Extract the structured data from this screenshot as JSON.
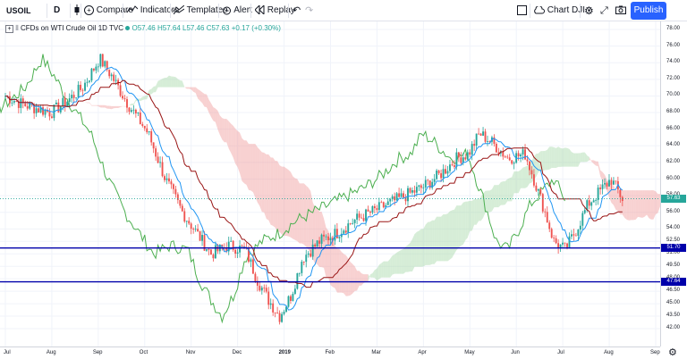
{
  "toolbar": {
    "symbol": "USOIL",
    "interval": "D",
    "compare_label": "Compare",
    "indicators_label": "Indicators",
    "templates_label": "Templates",
    "alert_label": "Alert",
    "replay_label": "Replay",
    "chart_name": "Chart DJI",
    "publish_label": "Publish"
  },
  "legend": {
    "title": "CFDs on WTI Crude Oil",
    "interval": "1D",
    "source": "TVC",
    "open": "O57.46",
    "high": "H57.64",
    "low": "L57.46",
    "close": "C57.63",
    "change": "+0.17 (+0.30%)"
  },
  "colors": {
    "up": "#26a69a",
    "down": "#ef5350",
    "conversion_line": "#2196f3",
    "base_line": "#991515",
    "lagging_span": "#4caf50",
    "cloud_bull": "#a5d6a7",
    "cloud_bear": "#ef9a9a",
    "horizontal_line": "#0000aa",
    "price_badge": "#26a69a",
    "accent": "#2962ff"
  },
  "chart_data": {
    "type": "candlestick",
    "symbol": "USOIL",
    "title": "CFDs on WTI Crude Oil",
    "interval": "1D",
    "y_ticks": [
      78.0,
      76.0,
      74.0,
      72.0,
      70.0,
      68.0,
      66.0,
      64.0,
      62.0,
      60.0,
      58.0,
      56.0,
      54.0,
      52.5,
      51.0,
      49.5,
      48.0,
      46.5,
      45.0,
      43.5,
      42.0
    ],
    "x_ticks": [
      "Jul",
      "Aug",
      "Sep",
      "Oct",
      "Nov",
      "Dec",
      "2019",
      "Feb",
      "Mar",
      "Apr",
      "May",
      "Jun",
      "Jul",
      "Aug",
      "Sep"
    ],
    "last_price": 57.63,
    "last_price_label": "57.63",
    "horizontal_lines": [
      {
        "value": 51.7,
        "label": "51.70",
        "color": "#0000aa"
      },
      {
        "value": 47.64,
        "label": "47.64",
        "color": "#0000aa"
      }
    ],
    "close_path": [
      {
        "t": 0.0,
        "v": 70.0
      },
      {
        "t": 0.06,
        "v": 69.0
      },
      {
        "t": 0.11,
        "v": 68.5
      },
      {
        "t": 0.16,
        "v": 68.0
      },
      {
        "t": 0.22,
        "v": 69.5
      },
      {
        "t": 0.27,
        "v": 71.0
      },
      {
        "t": 0.33,
        "v": 74.5
      },
      {
        "t": 0.37,
        "v": 72.5
      },
      {
        "t": 0.43,
        "v": 69.0
      },
      {
        "t": 0.5,
        "v": 65.5
      },
      {
        "t": 0.56,
        "v": 60.0
      },
      {
        "t": 0.62,
        "v": 56.0
      },
      {
        "t": 0.68,
        "v": 53.0
      },
      {
        "t": 0.72,
        "v": 51.0
      },
      {
        "t": 0.78,
        "v": 52.0
      },
      {
        "t": 0.84,
        "v": 51.5
      },
      {
        "t": 0.88,
        "v": 48.0
      },
      {
        "t": 0.92,
        "v": 45.5
      },
      {
        "t": 0.96,
        "v": 43.5
      },
      {
        "t": 1.0,
        "v": 46.0
      },
      {
        "t": 1.04,
        "v": 50.5
      },
      {
        "t": 1.1,
        "v": 52.5
      },
      {
        "t": 1.16,
        "v": 53.5
      },
      {
        "t": 1.22,
        "v": 55.0
      },
      {
        "t": 1.28,
        "v": 56.0
      },
      {
        "t": 1.34,
        "v": 57.0
      },
      {
        "t": 1.4,
        "v": 58.0
      },
      {
        "t": 1.46,
        "v": 59.0
      },
      {
        "t": 1.52,
        "v": 60.5
      },
      {
        "t": 1.58,
        "v": 62.5
      },
      {
        "t": 1.62,
        "v": 63.0
      },
      {
        "t": 1.66,
        "v": 65.5
      },
      {
        "t": 1.7,
        "v": 64.5
      },
      {
        "t": 1.76,
        "v": 62.5
      },
      {
        "t": 1.82,
        "v": 63.0
      },
      {
        "t": 1.88,
        "v": 57.0
      },
      {
        "t": 1.92,
        "v": 52.5
      },
      {
        "t": 1.96,
        "v": 51.5
      },
      {
        "t": 2.0,
        "v": 54.0
      },
      {
        "t": 2.04,
        "v": 57.0
      },
      {
        "t": 2.08,
        "v": 58.5
      },
      {
        "t": 2.12,
        "v": 60.0
      },
      {
        "t": 2.16,
        "v": 57.63
      }
    ]
  }
}
